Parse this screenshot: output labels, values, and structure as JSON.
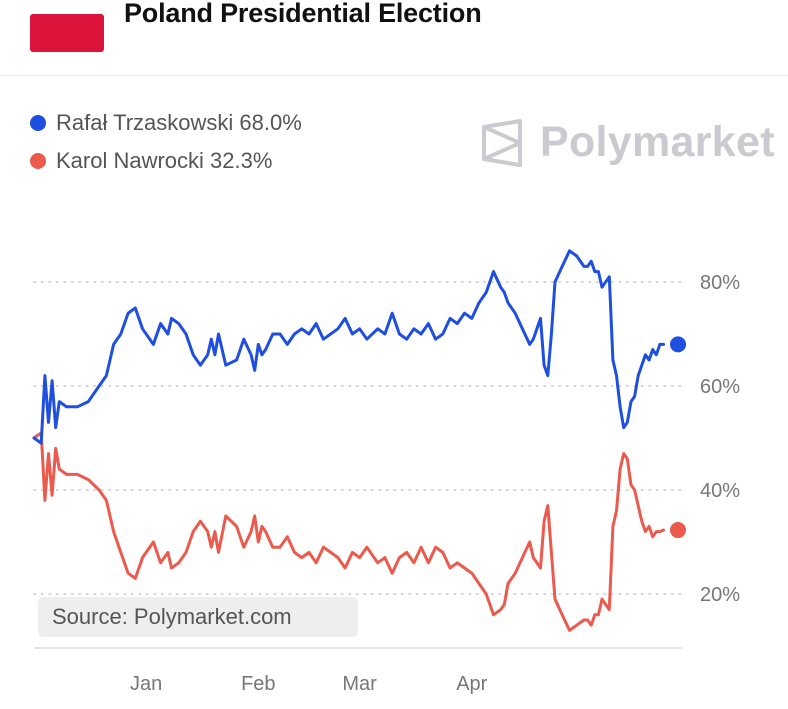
{
  "header": {
    "title": "Poland Presidential Election",
    "flag_color": "#dc143c"
  },
  "brand": {
    "name": "Polymarket",
    "icon": "polymarket-logo-icon",
    "color": "#c9cbd0"
  },
  "source_label": "Source: Polymarket.com",
  "chart_data": {
    "type": "line",
    "title": "Poland Presidential Election",
    "xlabel": "",
    "ylabel": "",
    "ylim": [
      10,
      88
    ],
    "xlim": [
      0,
      178
    ],
    "x_ticks": [
      {
        "label": "Jan",
        "day": 31
      },
      {
        "label": "Feb",
        "day": 62
      },
      {
        "label": "Mar",
        "day": 90
      },
      {
        "label": "Apr",
        "day": 121
      }
    ],
    "y_ticks": [
      {
        "value": 80,
        "label": "80%"
      },
      {
        "value": 60,
        "label": "60%"
      },
      {
        "value": 40,
        "label": "40%"
      },
      {
        "value": 20,
        "label": "20%"
      }
    ],
    "grid": "horizontal-dotted",
    "series": [
      {
        "name": "Rafał Trzaskowski",
        "color": "#1f4fe0",
        "legend_label": "Rafał Trzaskowski 68.0%",
        "last_value": 68.0,
        "x": [
          0,
          2,
          3,
          4,
          5,
          6,
          7,
          9,
          12,
          15,
          18,
          20,
          22,
          24,
          26,
          28,
          30,
          33,
          35,
          37,
          38,
          40,
          42,
          44,
          46,
          48,
          49,
          50,
          51,
          53,
          56,
          58,
          60,
          61,
          62,
          63,
          64,
          66,
          68,
          70,
          72,
          74,
          76,
          78,
          80,
          82,
          84,
          86,
          88,
          90,
          92,
          95,
          97,
          99,
          101,
          103,
          105,
          107,
          109,
          111,
          113,
          115,
          117,
          119,
          121,
          123,
          125,
          127,
          129,
          130,
          131,
          133,
          135,
          137,
          138,
          140,
          141,
          142,
          143,
          144,
          146,
          148,
          150,
          152,
          153,
          154,
          155,
          156,
          157,
          159,
          160,
          161,
          162,
          163,
          164,
          165,
          166,
          167,
          168,
          169,
          170,
          171,
          172,
          173,
          174
        ],
        "values": [
          50,
          49,
          62,
          53,
          61,
          52,
          57,
          56,
          56,
          57,
          60,
          62,
          68,
          70,
          74,
          75,
          71,
          68,
          72,
          70,
          73,
          72,
          70,
          66,
          64,
          66,
          69,
          66,
          70,
          64,
          65,
          69,
          66,
          63,
          68,
          66,
          67,
          70,
          70,
          68,
          70,
          71,
          70,
          72,
          69,
          70,
          71,
          73,
          70,
          71,
          69,
          71,
          70,
          74,
          70,
          69,
          71,
          70,
          72,
          69,
          70,
          73,
          72,
          74,
          73,
          76,
          78,
          82,
          79,
          78,
          76,
          74,
          71,
          68,
          69,
          73,
          64,
          62,
          70,
          80,
          83,
          86,
          85,
          83,
          83,
          84,
          82,
          82,
          79,
          81,
          65,
          62,
          56,
          52,
          53,
          57,
          58,
          62,
          64,
          66,
          65,
          67,
          66,
          68,
          68
        ]
      },
      {
        "name": "Karol Nawrocki",
        "color": "#eb5a4c",
        "legend_label": "Karol Nawrocki 32.3%",
        "last_value": 32.3,
        "x": [
          0,
          2,
          3,
          4,
          5,
          6,
          7,
          9,
          12,
          15,
          18,
          20,
          22,
          24,
          26,
          28,
          30,
          33,
          35,
          37,
          38,
          40,
          42,
          44,
          46,
          48,
          49,
          50,
          51,
          53,
          56,
          58,
          60,
          61,
          62,
          63,
          64,
          66,
          68,
          70,
          72,
          74,
          76,
          78,
          80,
          82,
          84,
          86,
          88,
          90,
          92,
          95,
          97,
          99,
          101,
          103,
          105,
          107,
          109,
          111,
          113,
          115,
          117,
          119,
          121,
          123,
          125,
          127,
          129,
          130,
          131,
          133,
          135,
          137,
          138,
          140,
          141,
          142,
          143,
          144,
          146,
          148,
          150,
          152,
          153,
          154,
          155,
          156,
          157,
          159,
          160,
          161,
          162,
          163,
          164,
          165,
          166,
          167,
          168,
          169,
          170,
          171,
          172,
          173,
          174
        ],
        "values": [
          50,
          51,
          38,
          47,
          39,
          48,
          44,
          43,
          43,
          42,
          40,
          38,
          32,
          28,
          24,
          23,
          27,
          30,
          26,
          28,
          25,
          26,
          28,
          32,
          34,
          32,
          29,
          32,
          28,
          35,
          33,
          29,
          32,
          35,
          30,
          33,
          32,
          29,
          29,
          31,
          28,
          27,
          28,
          26,
          29,
          28,
          27,
          25,
          28,
          27,
          29,
          26,
          27,
          24,
          27,
          28,
          26,
          29,
          26,
          29,
          28,
          25,
          26,
          25,
          24,
          22,
          20,
          16,
          17,
          18,
          22,
          24,
          27,
          30,
          27,
          25,
          34,
          37,
          28,
          19,
          16,
          13,
          14,
          15,
          15,
          14,
          16,
          16,
          19,
          17,
          33,
          36,
          44,
          47,
          46,
          41,
          40,
          37,
          34,
          32,
          33,
          31,
          32,
          32,
          32.3
        ]
      }
    ]
  }
}
